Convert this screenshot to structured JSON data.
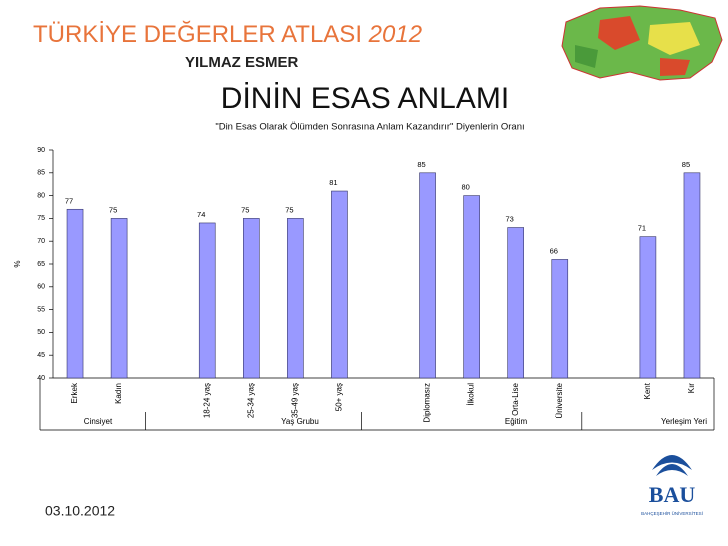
{
  "header": {
    "title": "TÜRKİYE DEĞERLER ATLASI",
    "year": "2012",
    "author": "YILMAZ ESMER",
    "slide_title": "DİNİN ESAS ANLAMI"
  },
  "chart_data": {
    "type": "bar",
    "title": "\"Din Esas Olarak Ölümden Sonrasına Anlam Kazandırır\" Diyenlerin Oranı",
    "y_label": "%",
    "categories": [
      "Erkek",
      "Kadın",
      null,
      "18-24 yaş",
      "25-34 yaş",
      "35-49 yaş",
      "50+ yaş",
      null,
      "Diplomasız",
      "İlkokul",
      "Orta-Lise",
      "Üniversite",
      null,
      "Kent",
      "Kır"
    ],
    "values": [
      77,
      75,
      null,
      74,
      75,
      75,
      81,
      null,
      85,
      80,
      73,
      66,
      null,
      71,
      85
    ],
    "groups": [
      "Cinsiyet",
      "Yaş Grubu",
      "Eğitim",
      "Yerleşim Yeri"
    ],
    "color": "#9999ff",
    "ylim": [
      40,
      90
    ],
    "yticks": [
      40,
      45,
      50,
      55,
      60,
      65,
      70,
      75,
      80,
      85,
      90
    ]
  },
  "footer": {
    "date": "03.10.2012",
    "logo": "BAU",
    "logo_subtitle": "BAHÇEŞEHİR ÜNİVERSİTESİ"
  }
}
